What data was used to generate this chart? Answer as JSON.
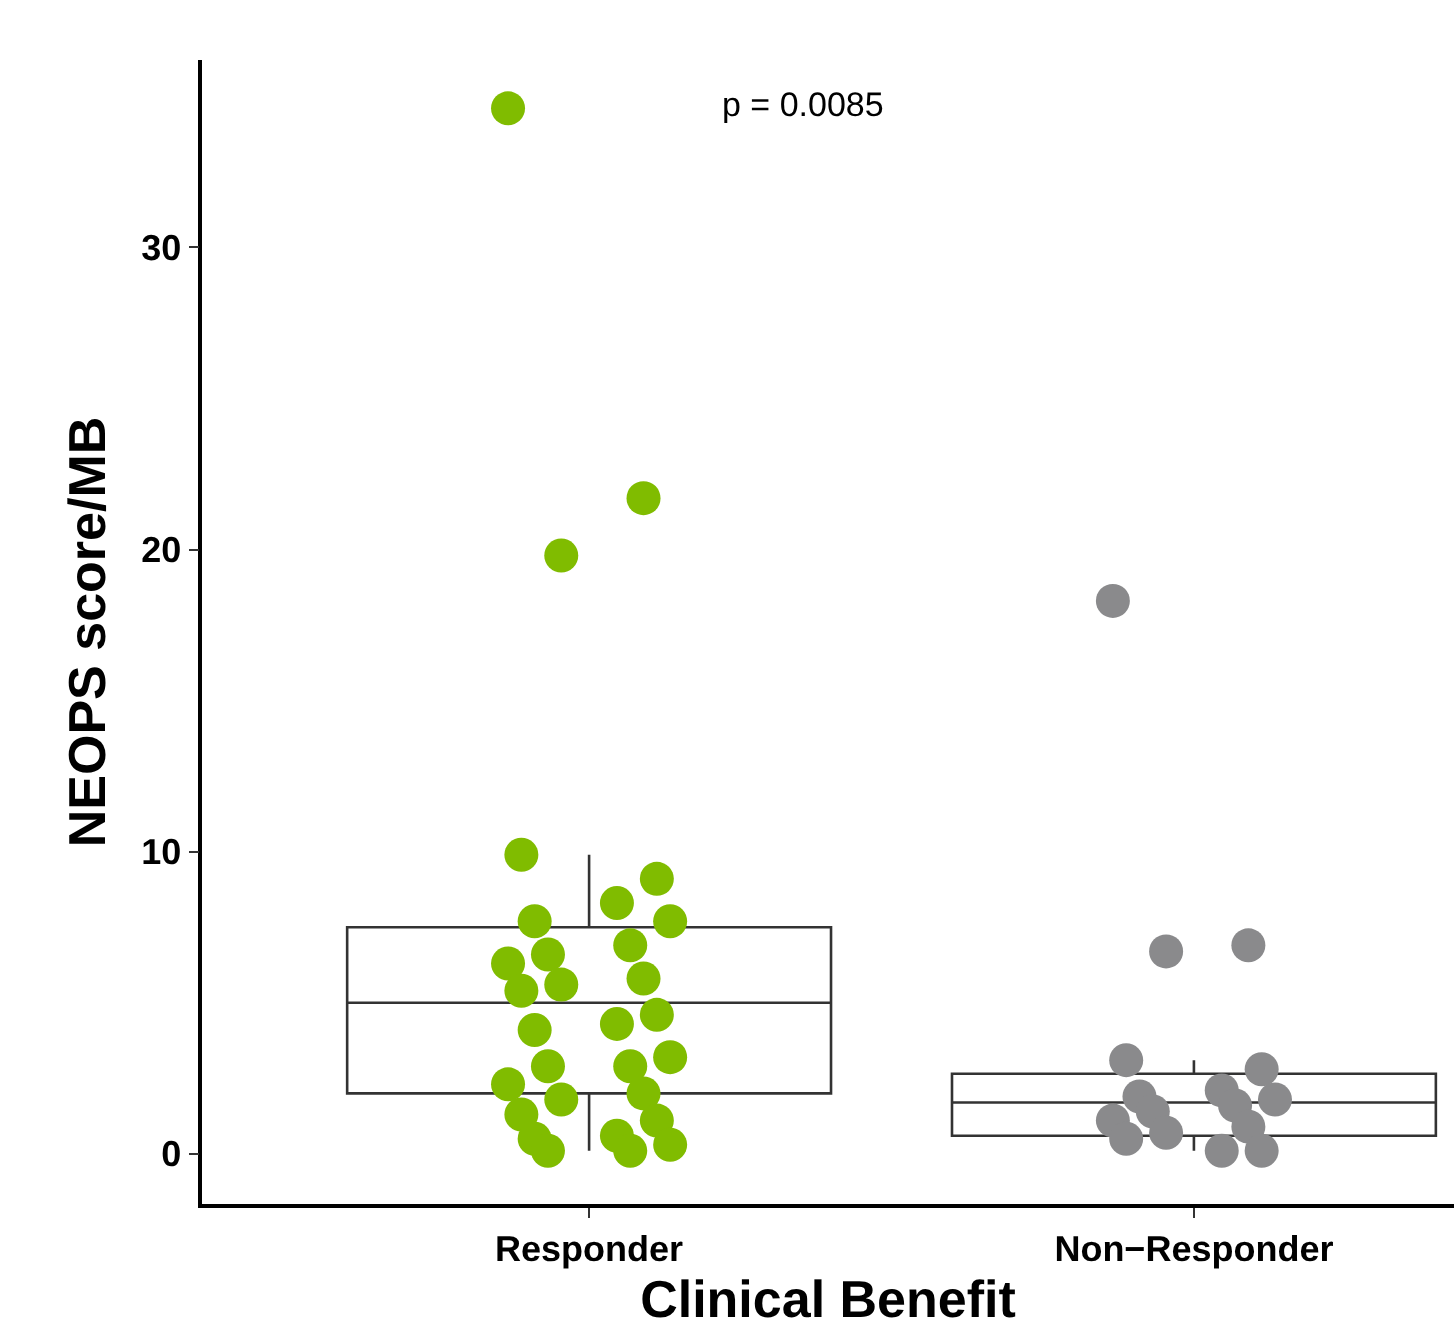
{
  "chart_data": {
    "type": "box",
    "xlabel": "Clinical Benefit",
    "ylabel": "NEOPS score/MB",
    "categories": [
      "Responder",
      "Non−Responder"
    ],
    "ylim": [
      -1.66,
      36.2
    ],
    "yticks": [
      0,
      10,
      20,
      30
    ],
    "grid": false,
    "marker": "circle",
    "annotations": [
      "p = 0.0085"
    ],
    "boxes": [
      {
        "low": 0.1,
        "q1": 2.0,
        "median": 5.0,
        "q3": 7.5,
        "high": 9.9
      },
      {
        "low": 0.1,
        "q1": 0.6,
        "median": 1.7,
        "q3": 2.65,
        "high": 3.1
      }
    ],
    "series": [
      {
        "type": "scatter",
        "color": "#80bc00",
        "x": [
          "Responder",
          "Responder",
          "Responder",
          "Responder",
          "Responder",
          "Responder",
          "Responder",
          "Responder",
          "Responder",
          "Responder",
          "Responder",
          "Responder",
          "Responder",
          "Responder",
          "Responder",
          "Responder",
          "Responder",
          "Responder",
          "Responder",
          "Responder",
          "Responder",
          "Responder",
          "Responder",
          "Responder",
          "Responder",
          "Responder",
          "Responder",
          "Responder",
          "Responder",
          "Responder"
        ],
        "values": [
          34.6,
          21.7,
          19.8,
          9.9,
          9.1,
          8.3,
          7.7,
          7.7,
          6.9,
          6.6,
          6.3,
          5.8,
          5.6,
          5.4,
          4.6,
          4.3,
          4.1,
          3.2,
          2.9,
          2.9,
          2.3,
          2.0,
          1.8,
          1.3,
          1.1,
          0.6,
          0.5,
          0.3,
          0.1,
          0.1
        ]
      },
      {
        "type": "scatter",
        "color": "#8a8a8c",
        "x": [
          "Non−Responder",
          "Non−Responder",
          "Non−Responder",
          "Non−Responder",
          "Non−Responder",
          "Non−Responder",
          "Non−Responder",
          "Non−Responder",
          "Non−Responder",
          "Non−Responder",
          "Non−Responder",
          "Non−Responder",
          "Non−Responder",
          "Non−Responder",
          "Non−Responder",
          "Non−Responder"
        ],
        "values": [
          18.3,
          6.9,
          6.7,
          3.1,
          2.8,
          2.1,
          1.9,
          1.8,
          1.6,
          1.4,
          1.1,
          0.9,
          0.7,
          0.5,
          0.1,
          0.1
        ]
      }
    ]
  }
}
